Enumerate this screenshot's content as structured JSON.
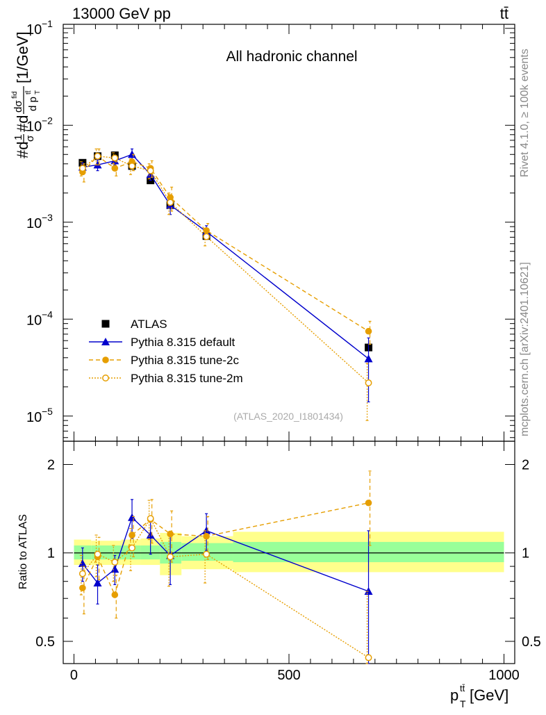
{
  "header": {
    "left": "13000 GeV pp",
    "right": "tt̄"
  },
  "side_text": {
    "rivet": "Rivet 4.1.0, ≥ 100k events",
    "mcplots": "mcplots.cern.ch [arXiv:2401.10621]"
  },
  "chart_data": {
    "type": "line",
    "title": "All hadronic channel",
    "analysis": "(ATLAS_2020_I1801434)",
    "xlabel": "p_T^{tt̄} [GeV]",
    "xlabel_main": "p",
    "xlabel_sub": "T",
    "xlabel_sup": "tt̄",
    "xlabel_unit": " [GeV]",
    "ylabel": "#d1/σ#dσ^{fid}/d p_T^{tt̄} [1/GeV]",
    "ylabel_left": "#d",
    "ylabel_frac1_num": "1",
    "ylabel_frac1_den": "σ",
    "ylabel_mid": "#d",
    "ylabel_frac2_num": "dσ",
    "ylabel_frac2_sup": "fid",
    "ylabel_frac2_den": "d p",
    "ylabel_frac2_den_sub": "T",
    "ylabel_frac2_den_sup": "tt̄",
    "ylabel_unit": "[1/GeV]",
    "ratio_ylabel": "Ratio to ATLAS",
    "xlim": [
      -25,
      1025
    ],
    "ylim": [
      5.5e-06,
      0.11
    ],
    "yscale": "log",
    "ratio_ylim": [
      0.42,
      2.4
    ],
    "ratio_yscale": "log",
    "x_ticks": [
      "0",
      "500",
      "1000"
    ],
    "x_tick_values": [
      0,
      500,
      1000
    ],
    "y_ticks": [
      {
        "value": 0.1,
        "base": "10",
        "exp": "−1"
      },
      {
        "value": 0.01,
        "base": "10",
        "exp": "−2"
      },
      {
        "value": 0.001,
        "base": "10",
        "exp": "−3"
      },
      {
        "value": 0.0001,
        "base": "10",
        "exp": "−4"
      },
      {
        "value": 1e-05,
        "base": "10",
        "exp": "−5"
      }
    ],
    "ratio_y_ticks": [
      {
        "value": 0.5,
        "label": "0.5"
      },
      {
        "value": 1,
        "label": "1"
      },
      {
        "value": 2,
        "label": "2"
      }
    ],
    "bins": [
      [
        0,
        40
      ],
      [
        40,
        80
      ],
      [
        80,
        110
      ],
      [
        110,
        155
      ],
      [
        155,
        200
      ],
      [
        200,
        250
      ],
      [
        250,
        370
      ],
      [
        370,
        1000
      ]
    ],
    "x": [
      20,
      55,
      95,
      135,
      178,
      224,
      308,
      685
    ],
    "ratio_bands": [
      {
        "x0": 0,
        "x1": 40,
        "inner": [
          0.95,
          1.06
        ],
        "outer": [
          0.91,
          1.11
        ]
      },
      {
        "x0": 40,
        "x1": 80,
        "inner": [
          0.95,
          1.06
        ],
        "outer": [
          0.91,
          1.1
        ]
      },
      {
        "x0": 80,
        "x1": 110,
        "inner": [
          0.95,
          1.06
        ],
        "outer": [
          0.91,
          1.1
        ]
      },
      {
        "x0": 110,
        "x1": 155,
        "inner": [
          0.95,
          1.06
        ],
        "outer": [
          0.91,
          1.11
        ]
      },
      {
        "x0": 155,
        "x1": 200,
        "inner": [
          0.95,
          1.06
        ],
        "outer": [
          0.91,
          1.12
        ]
      },
      {
        "x0": 200,
        "x1": 250,
        "inner": [
          0.92,
          1.09
        ],
        "outer": [
          0.84,
          1.17
        ]
      },
      {
        "x0": 250,
        "x1": 370,
        "inner": [
          0.94,
          1.08
        ],
        "outer": [
          0.88,
          1.14
        ]
      },
      {
        "x0": 370,
        "x1": 1000,
        "inner": [
          0.93,
          1.09
        ],
        "outer": [
          0.86,
          1.18
        ]
      }
    ],
    "series": [
      {
        "name": "ATLAS",
        "color": "#000000",
        "marker": "square",
        "line": "none",
        "values": [
          0.0041,
          0.0048,
          0.0049,
          0.0038,
          0.0027,
          0.0015,
          0.00072,
          5.1e-05
        ],
        "ratio": [
          1,
          1,
          1,
          1,
          1,
          1,
          1,
          1
        ],
        "ratio_err": [
          0,
          0,
          0,
          0,
          0,
          0,
          0,
          0
        ]
      },
      {
        "name": "Pythia 8.315 default",
        "color": "#0000cc",
        "marker": "triangle",
        "line": "solid",
        "values": [
          0.0037,
          0.0039,
          0.0043,
          0.005,
          0.0031,
          0.0015,
          0.0008,
          3.9e-05
        ],
        "err_lo": [
          0.0004,
          0.0005,
          0.0004,
          0.0007,
          0.0004,
          0.0003,
          0.00012,
          2.5e-05
        ],
        "err_hi": [
          0.0004,
          0.0005,
          0.0004,
          0.0007,
          0.0004,
          0.0003,
          0.00012,
          2.5e-05
        ],
        "ratio": [
          0.92,
          0.79,
          0.88,
          1.32,
          1.15,
          0.98,
          1.19,
          0.74
        ],
        "ratio_err": [
          0.12,
          0.12,
          0.1,
          0.2,
          0.16,
          0.2,
          0.17,
          0.45
        ]
      },
      {
        "name": "Pythia 8.315 tune-2c",
        "color": "#e69e00",
        "marker": "circle",
        "line": "dashed",
        "values": [
          0.0033,
          0.0048,
          0.0036,
          0.0042,
          0.0036,
          0.0018,
          0.00082,
          7.5e-05
        ],
        "err_lo": [
          0.0007,
          0.0009,
          0.0006,
          0.0008,
          0.0007,
          0.0005,
          0.00015,
          2e-05
        ],
        "err_hi": [
          0.0007,
          0.0009,
          0.0006,
          0.0008,
          0.0007,
          0.0005,
          0.00015,
          2e-05
        ],
        "ratio": [
          0.76,
          0.97,
          0.72,
          1.15,
          1.3,
          1.16,
          1.14,
          1.48
        ],
        "ratio_err": [
          0.14,
          0.16,
          0.12,
          0.18,
          0.22,
          0.23,
          0.19,
          0.42
        ]
      },
      {
        "name": "Pythia 8.315 tune-2m",
        "color": "#e69e00",
        "marker": "open-circle",
        "line": "dotted",
        "values": [
          0.0036,
          0.0048,
          0.0046,
          0.0038,
          0.0034,
          0.0016,
          0.00071,
          2.2e-05
        ],
        "err_lo": [
          0.0006,
          0.0009,
          0.0006,
          0.0007,
          0.0006,
          0.0004,
          0.00014,
          1.3e-05
        ],
        "err_hi": [
          0.0006,
          0.0009,
          0.0006,
          0.0007,
          0.0006,
          0.0004,
          0.00014,
          1.3e-05
        ],
        "ratio": [
          0.85,
          0.99,
          0.93,
          1.04,
          1.31,
          0.97,
          0.99,
          0.44
        ],
        "ratio_err": [
          0.13,
          0.16,
          0.13,
          0.17,
          0.2,
          0.2,
          0.2,
          0.3
        ]
      }
    ]
  }
}
